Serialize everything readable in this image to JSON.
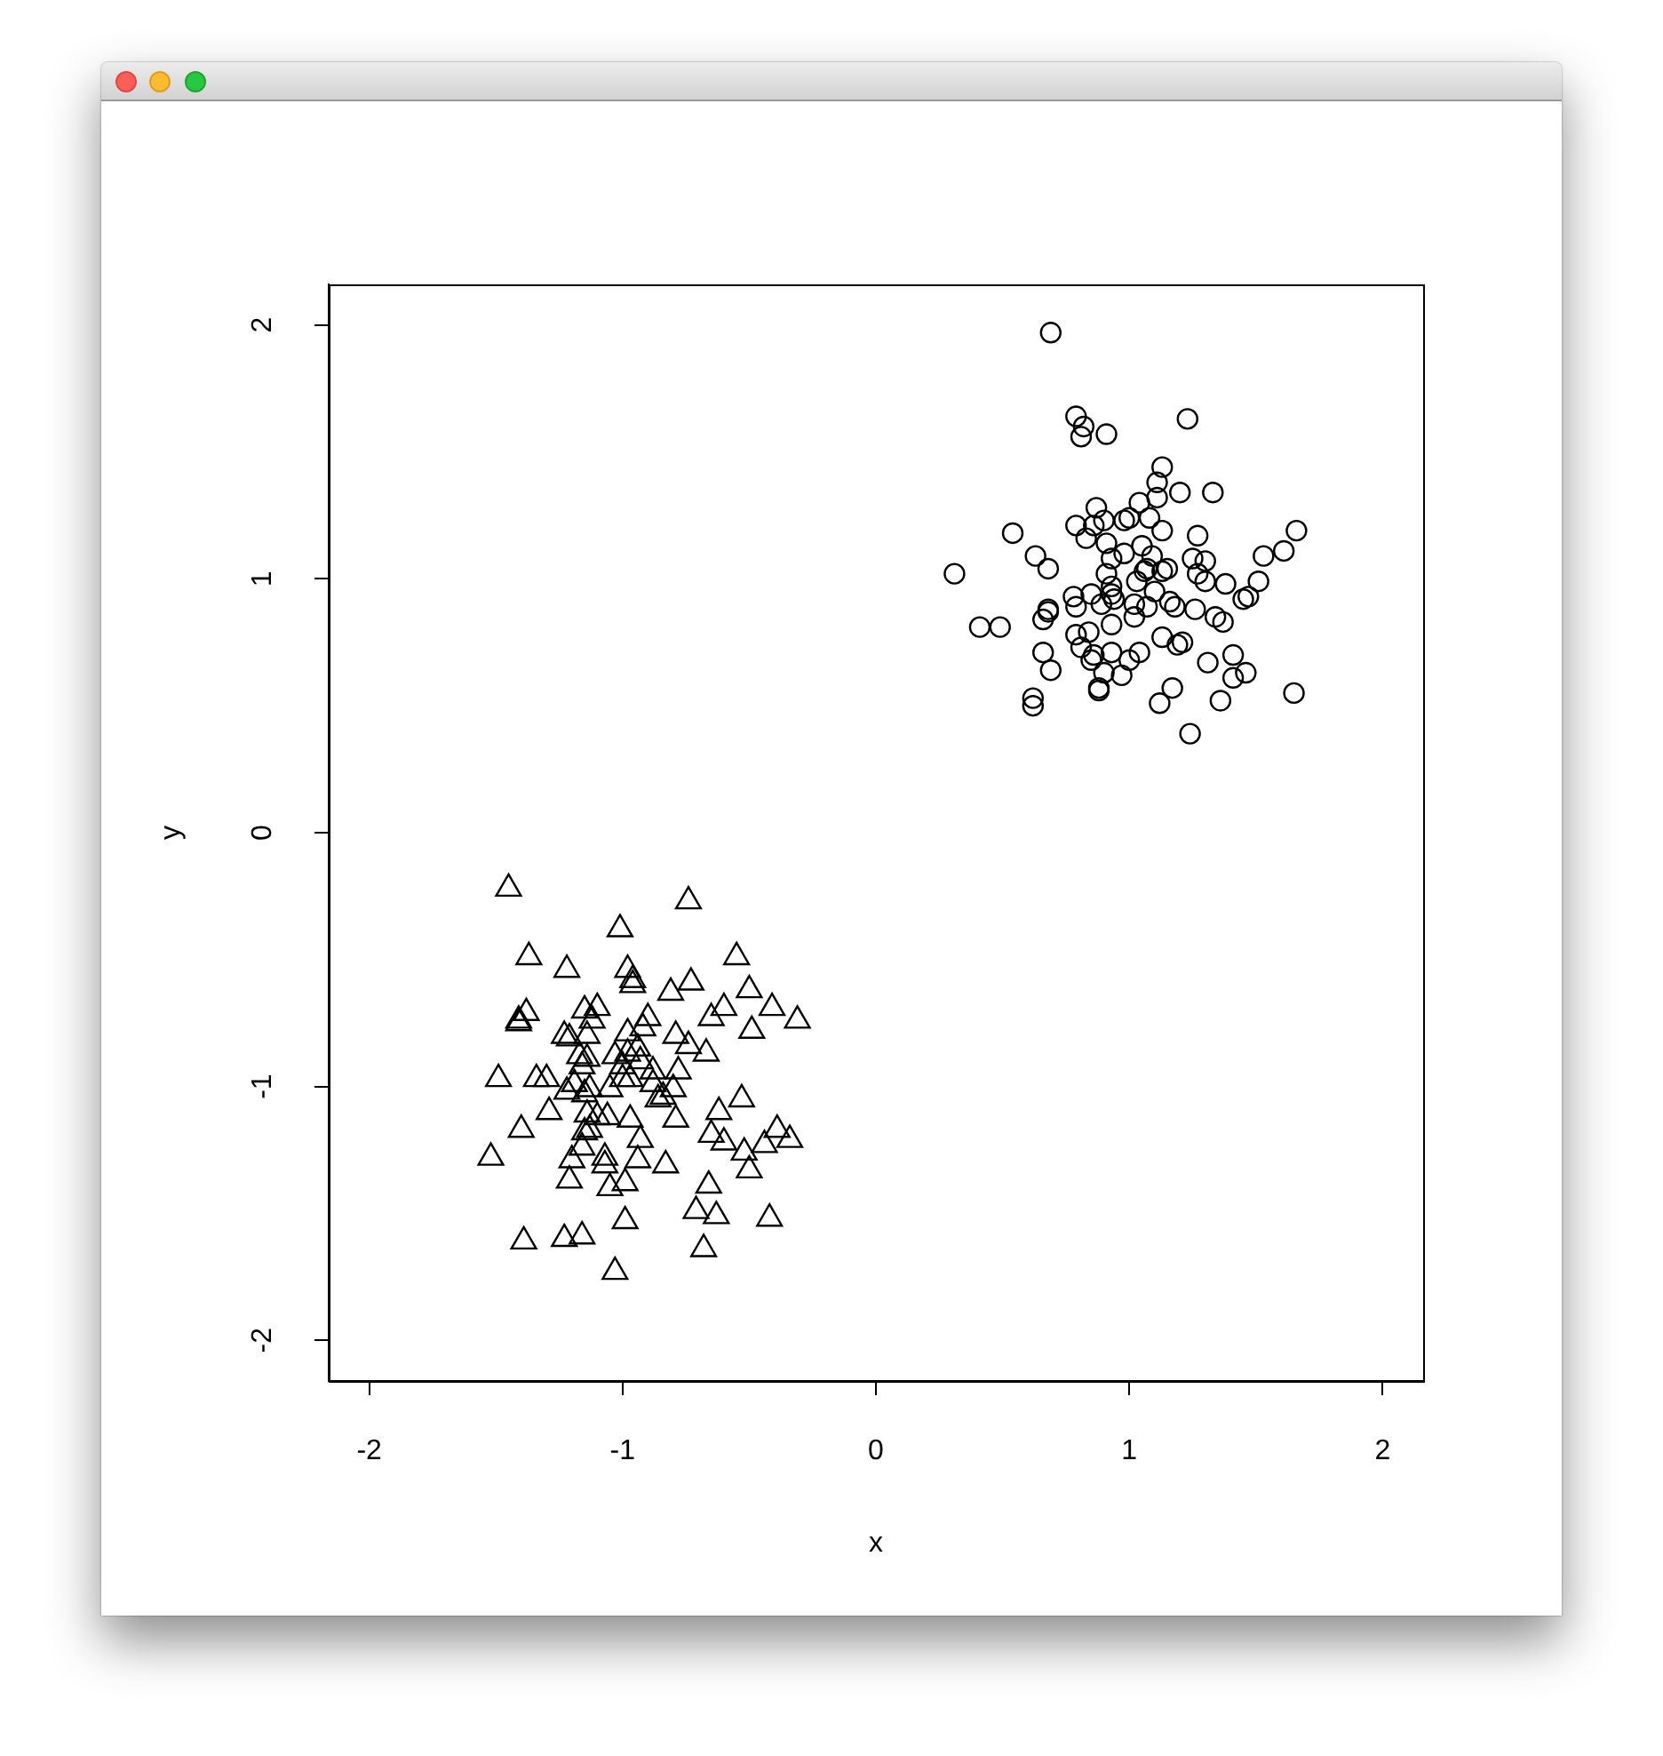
{
  "chart_data": {
    "type": "scatter",
    "xlabel": "x",
    "ylabel": "y",
    "series": [
      {
        "marker": "circle",
        "color": "#000000",
        "x": [
          0.69,
          0.79,
          0.82,
          0.81,
          0.91,
          1.23,
          1.13,
          1.11,
          1.11,
          1.2,
          1.33,
          0.87,
          1.04,
          0.79,
          0.9,
          0.86,
          0.98,
          1.0,
          1.08,
          0.54,
          1.66,
          1.13,
          1.27,
          0.83,
          0.91,
          0.98,
          1.05,
          1.09,
          0.93,
          0.63,
          0.68,
          0.31,
          0.91,
          1.03,
          1.06,
          1.07,
          1.13,
          1.15,
          1.25,
          1.3,
          1.27,
          1.3,
          1.38,
          1.53,
          1.61,
          1.51,
          0.93,
          0.93,
          1.1,
          0.78,
          0.85,
          0.79,
          0.89,
          0.94,
          1.02,
          1.07,
          1.16,
          1.18,
          1.26,
          1.34,
          1.37,
          1.45,
          1.47,
          0.68,
          0.68,
          0.66,
          0.41,
          0.49,
          0.93,
          1.02,
          0.79,
          0.84,
          0.81,
          0.86,
          0.85,
          0.93,
          1.0,
          1.04,
          1.13,
          1.19,
          1.21,
          0.66,
          0.69,
          0.9,
          0.97,
          1.31,
          1.41,
          1.46,
          1.41,
          0.88,
          0.88,
          1.17,
          1.12,
          1.36,
          1.65,
          0.62,
          0.62,
          1.24
        ],
        "values": [
          1.97,
          1.64,
          1.6,
          1.56,
          1.57,
          1.63,
          1.44,
          1.38,
          1.32,
          1.34,
          1.34,
          1.28,
          1.3,
          1.21,
          1.23,
          1.21,
          1.23,
          1.24,
          1.24,
          1.18,
          1.19,
          1.19,
          1.17,
          1.16,
          1.14,
          1.1,
          1.13,
          1.09,
          1.08,
          1.09,
          1.04,
          1.02,
          1.02,
          0.99,
          1.03,
          1.04,
          1.03,
          1.04,
          1.08,
          1.07,
          1.02,
          0.99,
          0.98,
          1.09,
          1.11,
          0.99,
          0.97,
          0.94,
          0.95,
          0.93,
          0.94,
          0.89,
          0.9,
          0.92,
          0.9,
          0.89,
          0.91,
          0.89,
          0.88,
          0.85,
          0.83,
          0.92,
          0.93,
          0.88,
          0.87,
          0.84,
          0.81,
          0.81,
          0.82,
          0.85,
          0.78,
          0.79,
          0.73,
          0.7,
          0.68,
          0.71,
          0.68,
          0.71,
          0.77,
          0.74,
          0.75,
          0.71,
          0.64,
          0.63,
          0.62,
          0.67,
          0.7,
          0.63,
          0.61,
          0.57,
          0.56,
          0.57,
          0.51,
          0.52,
          0.55,
          0.53,
          0.5,
          0.39
        ]
      },
      {
        "marker": "triangle",
        "color": "#000000",
        "x": [
          -1.45,
          -0.74,
          -1.01,
          -1.37,
          -1.22,
          -0.55,
          -0.98,
          -0.96,
          -0.96,
          -0.81,
          -0.73,
          -0.5,
          -0.6,
          -0.65,
          -0.41,
          -0.31,
          -0.49,
          -1.38,
          -1.41,
          -1.41,
          -1.15,
          -1.1,
          -1.12,
          -0.9,
          -0.92,
          -1.14,
          -1.23,
          -1.21,
          -0.98,
          -0.79,
          -0.74,
          -0.67,
          -0.94,
          -0.98,
          -1.17,
          -1.14,
          -1.03,
          -0.93,
          -1.16,
          -1.0,
          -0.78,
          -0.88,
          -1.49,
          -1.34,
          -1.3,
          -1.22,
          -1.19,
          -1.15,
          -1.13,
          -1.05,
          -1.0,
          -0.97,
          -0.88,
          -0.86,
          -0.84,
          -0.8,
          -1.29,
          -1.4,
          -1.52,
          -1.14,
          -1.1,
          -1.13,
          -1.15,
          -1.06,
          -0.97,
          -0.79,
          -0.93,
          -1.16,
          -1.2,
          -1.07,
          -1.07,
          -0.94,
          -0.83,
          -1.21,
          -0.99,
          -1.05,
          -0.62,
          -0.53,
          -0.65,
          -0.6,
          -0.52,
          -0.44,
          -0.39,
          -0.34,
          -0.5,
          -0.66,
          -0.71,
          -0.63,
          -0.42,
          -0.68,
          -0.99,
          -1.39,
          -1.23,
          -1.16,
          -1.03
        ],
        "values": [
          -0.22,
          -0.27,
          -0.38,
          -0.49,
          -0.54,
          -0.49,
          -0.54,
          -0.58,
          -0.6,
          -0.63,
          -0.59,
          -0.62,
          -0.69,
          -0.73,
          -0.69,
          -0.74,
          -0.78,
          -0.71,
          -0.74,
          -0.75,
          -0.7,
          -0.69,
          -0.74,
          -0.73,
          -0.77,
          -0.8,
          -0.8,
          -0.81,
          -0.79,
          -0.8,
          -0.84,
          -0.87,
          -0.85,
          -0.87,
          -0.88,
          -0.89,
          -0.88,
          -0.9,
          -0.92,
          -0.92,
          -0.94,
          -0.94,
          -0.97,
          -0.97,
          -0.97,
          -1.02,
          -0.99,
          -1.03,
          -1.01,
          -1.01,
          -0.97,
          -0.97,
          -0.99,
          -1.05,
          -1.04,
          -1.01,
          -1.1,
          -1.17,
          -1.28,
          -1.11,
          -1.12,
          -1.17,
          -1.18,
          -1.12,
          -1.13,
          -1.13,
          -1.21,
          -1.24,
          -1.29,
          -1.28,
          -1.31,
          -1.29,
          -1.31,
          -1.37,
          -1.38,
          -1.4,
          -1.1,
          -1.05,
          -1.19,
          -1.22,
          -1.26,
          -1.23,
          -1.17,
          -1.21,
          -1.33,
          -1.39,
          -1.49,
          -1.51,
          -1.52,
          -1.64,
          -1.53,
          -1.61,
          -1.6,
          -1.59,
          -1.73
        ]
      }
    ],
    "xlim": [
      -2.16,
      2.16
    ],
    "ylim": [
      -2.16,
      2.16
    ],
    "xticks": [
      -2,
      -1,
      0,
      1,
      2
    ],
    "yticks": [
      -2,
      -1,
      0,
      1,
      2
    ],
    "grid": false,
    "legend": false
  }
}
